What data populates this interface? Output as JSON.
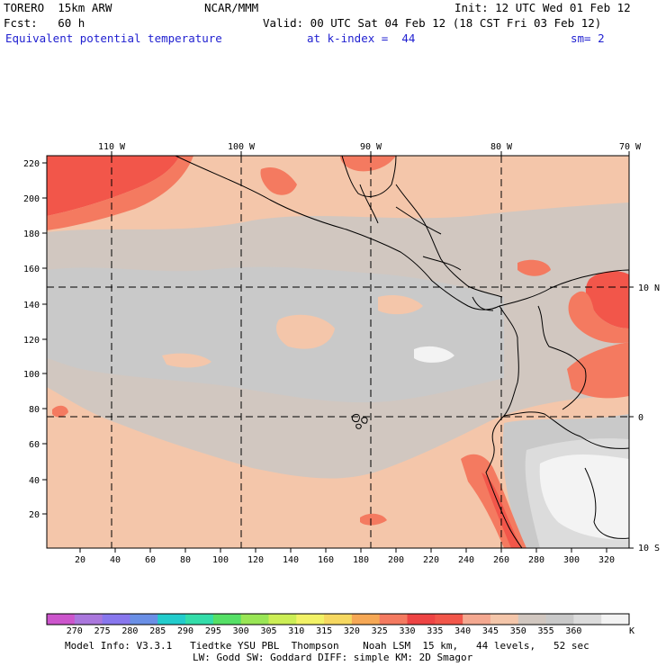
{
  "header": {
    "model": "TORERO  15km ARW",
    "org": "NCAR/MMM",
    "init": "Init: 12 UTC Wed 01 Feb 12",
    "fcst": "Fcst:   60 h",
    "valid": "Valid: 00 UTC Sat 04 Feb 12 (18 CST Fri 03 Feb 12)",
    "field": "Equivalent potential temperature",
    "level": "at k-index =  44",
    "smooth": "sm= 2"
  },
  "map": {
    "x_ticks": [
      "20",
      "40",
      "60",
      "80",
      "100",
      "120",
      "140",
      "160",
      "180",
      "200",
      "220",
      "240",
      "260",
      "280",
      "300",
      "320"
    ],
    "y_ticks": [
      "20",
      "40",
      "60",
      "80",
      "100",
      "120",
      "140",
      "160",
      "180",
      "200",
      "220"
    ],
    "lon_labels": [
      "110 W",
      "100 W",
      "90 W",
      "80 W",
      "70 W"
    ],
    "lat_labels": [
      "10 N",
      "0",
      "10 S"
    ],
    "colors": {
      "c335": "#f2564a",
      "c330": "#f47a60",
      "c340": "#f4c6aa",
      "c345": "#d1c7c0",
      "c350": "#c9c9c9",
      "c355": "#dcdcdc",
      "c360": "#f3f3f3"
    }
  },
  "colorbar": {
    "labels": [
      "270",
      "275",
      "280",
      "285",
      "290",
      "295",
      "300",
      "305",
      "310",
      "315",
      "320",
      "325",
      "330",
      "335",
      "340",
      "345",
      "350",
      "355",
      "360"
    ],
    "unit": "K",
    "colors": [
      "#cc55cc",
      "#aa77dd",
      "#8877ee",
      "#6a8fe6",
      "#22cccc",
      "#33ddaa",
      "#55e066",
      "#99e655",
      "#ccee55",
      "#f2f266",
      "#f6d860",
      "#f6a855",
      "#f47a60",
      "#ee4444",
      "#f2564a",
      "#f4a890",
      "#f4c6aa",
      "#d1c7c0",
      "#c9c9c9",
      "#dcdcdc",
      "#f3f3f3"
    ]
  },
  "footer": {
    "line1": "Model Info: V3.3.1   Tiedtke YSU PBL  Thompson    Noah LSM  15 km,   44 levels,   52 sec",
    "line2": "LW: Godd SW: Goddard DIFF: simple KM: 2D Smagor"
  }
}
